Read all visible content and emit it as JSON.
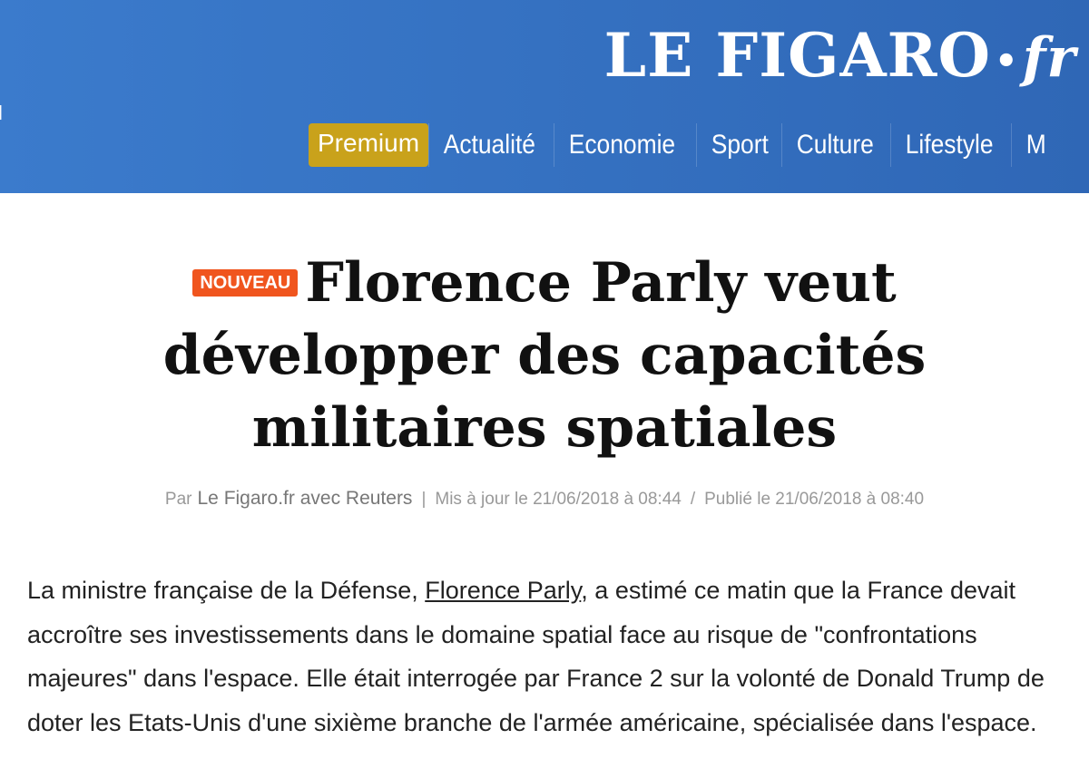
{
  "header": {
    "edge_text": "l",
    "logo": {
      "name": "LE FIGARO",
      "dot": "•",
      "suffix": "fr"
    },
    "nav": [
      "Premium",
      "Actualité",
      "Economie",
      "Sport",
      "Culture",
      "Lifestyle",
      "M"
    ]
  },
  "article": {
    "badge": "NOUVEAU",
    "title": "Florence Parly veut développer des capacités militaires spatiales",
    "byline": {
      "prefix": "Par",
      "author": "Le Figaro.fr avec Reuters",
      "separator": "|",
      "updated": "Mis à jour le 21/06/2018 à 08:44",
      "slash": "/",
      "published": "Publié le 21/06/2018 à 08:40"
    },
    "lead": {
      "before": "La ministre française de la Défense, ",
      "link": "Florence Parly",
      "after": ", a estimé ce matin que la France devait accroître ses investissements dans le domaine spatial face au risque de \"confrontations majeures\" dans l'espace. Elle était interrogée par France 2 sur la volonté de Donald Trump de doter les Etats-Unis d'une sixième branche de l'armée américaine, spécialisée dans l'espace."
    }
  }
}
